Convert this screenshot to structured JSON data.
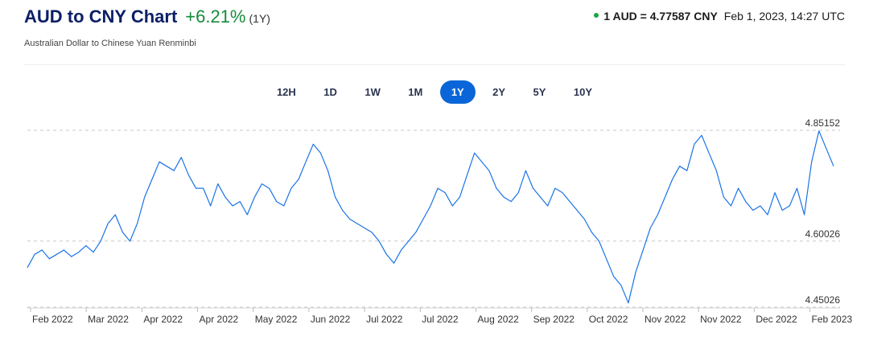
{
  "header": {
    "title": "AUD to CNY Chart",
    "change": "+6.21%",
    "period": "(1Y)",
    "subtitle": "Australian Dollar to Chinese Yuan Renminbi",
    "rate_text": "1 AUD = 4.77587 CNY",
    "rate_time": "Feb 1, 2023, 14:27 UTC"
  },
  "tabs": [
    {
      "label": "12H",
      "active": false
    },
    {
      "label": "1D",
      "active": false
    },
    {
      "label": "1W",
      "active": false
    },
    {
      "label": "1M",
      "active": false
    },
    {
      "label": "1Y",
      "active": true
    },
    {
      "label": "2Y",
      "active": false
    },
    {
      "label": "5Y",
      "active": false
    },
    {
      "label": "10Y",
      "active": false
    }
  ],
  "colors": {
    "line": "#1a73e8",
    "gridline": "#c8c8c8",
    "positive": "#188a3c",
    "title": "#0b1f66",
    "active_tab": "#0a66d8"
  },
  "chart_data": {
    "type": "line",
    "title": "",
    "xlabel": "",
    "ylabel": "",
    "ylim": [
      4.45026,
      4.85152
    ],
    "y_ticks": [
      "4.85152",
      "4.60026",
      "4.45026"
    ],
    "x_tick_labels": [
      "Feb 2022",
      "Mar 2022",
      "Apr 2022",
      "Apr 2022",
      "May 2022",
      "Jun 2022",
      "Jul 2022",
      "Jul 2022",
      "Aug 2022",
      "Sep 2022",
      "Oct 2022",
      "Nov 2022",
      "Nov 2022",
      "Dec 2022",
      "Feb 2023"
    ],
    "grid": "horizontal-dashed",
    "series": [
      {
        "values": [
          4.54,
          4.57,
          4.58,
          4.56,
          4.57,
          4.58,
          4.565,
          4.575,
          4.59,
          4.575,
          4.6,
          4.64,
          4.66,
          4.62,
          4.6,
          4.64,
          4.7,
          4.74,
          4.78,
          4.77,
          4.76,
          4.79,
          4.75,
          4.72,
          4.72,
          4.68,
          4.73,
          4.7,
          4.68,
          4.69,
          4.66,
          4.7,
          4.73,
          4.72,
          4.69,
          4.68,
          4.72,
          4.74,
          4.78,
          4.82,
          4.8,
          4.76,
          4.7,
          4.67,
          4.65,
          4.64,
          4.63,
          4.62,
          4.6,
          4.57,
          4.55,
          4.58,
          4.6,
          4.62,
          4.65,
          4.68,
          4.72,
          4.71,
          4.68,
          4.7,
          4.75,
          4.8,
          4.78,
          4.76,
          4.72,
          4.7,
          4.69,
          4.71,
          4.76,
          4.72,
          4.7,
          4.68,
          4.72,
          4.71,
          4.69,
          4.67,
          4.65,
          4.62,
          4.6,
          4.56,
          4.52,
          4.5,
          4.46,
          4.53,
          4.58,
          4.63,
          4.66,
          4.7,
          4.74,
          4.77,
          4.76,
          4.82,
          4.84,
          4.8,
          4.76,
          4.7,
          4.68,
          4.72,
          4.69,
          4.67,
          4.68,
          4.66,
          4.71,
          4.67,
          4.68,
          4.72,
          4.66,
          4.78,
          4.85,
          4.81,
          4.77
        ]
      }
    ]
  }
}
